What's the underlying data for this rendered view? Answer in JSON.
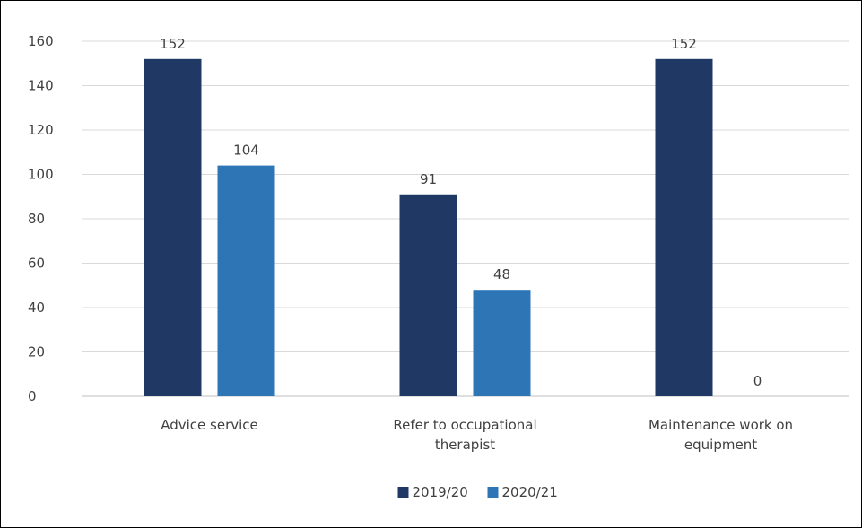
{
  "chart_data": {
    "type": "bar",
    "categories": [
      [
        "Advice service"
      ],
      [
        "Refer to occupational",
        "therapist"
      ],
      [
        "Maintenance work on",
        "equipment"
      ]
    ],
    "series": [
      {
        "name": "2019/20",
        "values": [
          152,
          91,
          152
        ],
        "color": "#1f3864"
      },
      {
        "name": "2020/21",
        "values": [
          104,
          48,
          0
        ],
        "color": "#2e75b6"
      }
    ],
    "ylim": [
      0,
      160
    ],
    "yticks": [
      0,
      20,
      40,
      60,
      80,
      100,
      120,
      140,
      160
    ],
    "grid": true,
    "legend": "bottom-center",
    "title": "",
    "xlabel": "",
    "ylabel": ""
  }
}
